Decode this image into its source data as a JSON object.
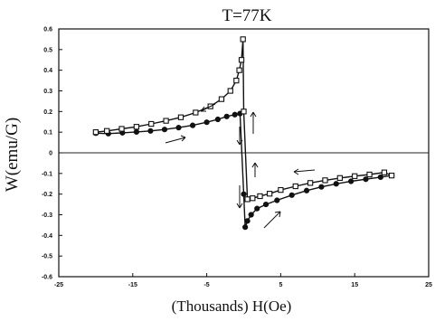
{
  "chart_data": {
    "type": "line",
    "title": "T=77K",
    "xlabel": "(Thousands) H(Oe)",
    "ylabel": "W(emu/G)",
    "xlim": [
      -25,
      25
    ],
    "ylim": [
      -0.6,
      0.6
    ],
    "x_ticks": [
      -25,
      -15,
      -5,
      5,
      15,
      25
    ],
    "x_tick_labels": [
      "-25",
      "-15",
      "-5",
      "5",
      "15",
      "25"
    ],
    "y_ticks": [
      0.6,
      0.5,
      0.4,
      0.3,
      0.2,
      0.1,
      0,
      -0.1,
      -0.2,
      -0.3,
      -0.4,
      -0.5,
      -0.6
    ],
    "y_tick_labels": [
      "0.6",
      "0.5",
      "0.4",
      "0.3",
      "0.2",
      "0.1",
      "0",
      "-0.1",
      "-0.2",
      "-0.3",
      "-0.4",
      "-0.5",
      "-0.6"
    ],
    "grid": false,
    "series": [
      {
        "marker": "circle",
        "points": [
          [
            -20.0,
            0.095
          ],
          [
            -18.3,
            0.093
          ],
          [
            -16.4,
            0.097
          ],
          [
            -14.5,
            0.101
          ],
          [
            -12.6,
            0.106
          ],
          [
            -10.7,
            0.113
          ],
          [
            -8.8,
            0.122
          ],
          [
            -6.9,
            0.133
          ],
          [
            -5.0,
            0.148
          ],
          [
            -3.5,
            0.162
          ],
          [
            -2.3,
            0.176
          ],
          [
            -1.2,
            0.185
          ],
          [
            -0.5,
            0.19
          ],
          [
            0.0,
            -0.2
          ],
          [
            0.2,
            -0.36
          ],
          [
            0.5,
            -0.33
          ],
          [
            1.0,
            -0.3
          ],
          [
            1.8,
            -0.27
          ],
          [
            3.0,
            -0.25
          ],
          [
            4.5,
            -0.23
          ],
          [
            6.5,
            -0.205
          ],
          [
            8.5,
            -0.183
          ],
          [
            10.5,
            -0.165
          ],
          [
            12.5,
            -0.15
          ],
          [
            14.5,
            -0.138
          ],
          [
            16.5,
            -0.128
          ],
          [
            18.5,
            -0.118
          ],
          [
            20.0,
            -0.11
          ]
        ]
      },
      {
        "marker": "square",
        "points": [
          [
            20.0,
            -0.11
          ],
          [
            19.0,
            -0.095
          ],
          [
            17.0,
            -0.105
          ],
          [
            15.0,
            -0.113
          ],
          [
            13.0,
            -0.122
          ],
          [
            11.0,
            -0.133
          ],
          [
            9.0,
            -0.146
          ],
          [
            7.0,
            -0.162
          ],
          [
            5.0,
            -0.18
          ],
          [
            3.5,
            -0.198
          ],
          [
            2.2,
            -0.21
          ],
          [
            1.2,
            -0.22
          ],
          [
            0.5,
            -0.225
          ],
          [
            0.0,
            0.2
          ],
          [
            -0.1,
            0.55
          ],
          [
            -0.3,
            0.45
          ],
          [
            -0.6,
            0.4
          ],
          [
            -1.0,
            0.35
          ],
          [
            -1.8,
            0.3
          ],
          [
            -3.0,
            0.26
          ],
          [
            -4.5,
            0.225
          ],
          [
            -6.5,
            0.195
          ],
          [
            -8.5,
            0.172
          ],
          [
            -10.5,
            0.155
          ],
          [
            -12.5,
            0.14
          ],
          [
            -14.5,
            0.126
          ],
          [
            -16.5,
            0.116
          ],
          [
            -18.5,
            0.106
          ],
          [
            -20.0,
            0.1
          ]
        ]
      }
    ]
  }
}
